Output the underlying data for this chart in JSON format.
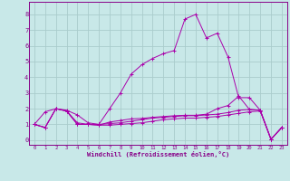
{
  "xlabel": "Windchill (Refroidissement éolien,°C)",
  "x_values": [
    0,
    1,
    2,
    3,
    4,
    5,
    6,
    7,
    8,
    9,
    10,
    11,
    12,
    13,
    14,
    15,
    16,
    17,
    18,
    19,
    20,
    21,
    22,
    23
  ],
  "line1": [
    1.0,
    1.8,
    2.0,
    1.9,
    1.6,
    1.1,
    1.0,
    2.0,
    3.0,
    4.2,
    4.8,
    5.2,
    5.5,
    5.7,
    7.7,
    8.0,
    6.5,
    6.8,
    5.3,
    2.7,
    2.7,
    1.9,
    0.05,
    0.8
  ],
  "line2": [
    1.0,
    0.8,
    2.0,
    1.85,
    1.1,
    1.0,
    1.0,
    1.05,
    1.1,
    1.2,
    1.3,
    1.4,
    1.45,
    1.5,
    1.55,
    1.55,
    1.6,
    1.65,
    1.75,
    1.9,
    1.95,
    1.9,
    0.05,
    0.8
  ],
  "line3": [
    1.0,
    0.8,
    2.0,
    1.85,
    1.0,
    1.0,
    0.95,
    0.95,
    1.0,
    1.05,
    1.1,
    1.2,
    1.3,
    1.35,
    1.4,
    1.4,
    1.45,
    1.5,
    1.6,
    1.7,
    1.8,
    1.85,
    0.05,
    0.8
  ],
  "line4": [
    1.0,
    0.8,
    2.0,
    1.85,
    1.0,
    1.0,
    0.95,
    1.15,
    1.25,
    1.35,
    1.38,
    1.45,
    1.5,
    1.55,
    1.58,
    1.58,
    1.65,
    2.0,
    2.2,
    2.8,
    1.95,
    1.9,
    0.05,
    0.8
  ],
  "line_color": "#aa00aa",
  "bg_color": "#c8e8e8",
  "grid_color": "#aacccc",
  "axis_color": "#880088",
  "ylim": [
    -0.3,
    8.8
  ],
  "xlim": [
    -0.5,
    23.5
  ],
  "yticks": [
    0,
    1,
    2,
    3,
    4,
    5,
    6,
    7,
    8
  ],
  "xtick_labels": [
    "0",
    "1",
    "2",
    "3",
    "4",
    "5",
    "6",
    "7",
    "8",
    "9",
    "10",
    "11",
    "12",
    "13",
    "14",
    "15",
    "16",
    "17",
    "18",
    "19",
    "20",
    "21",
    "22",
    "23"
  ]
}
